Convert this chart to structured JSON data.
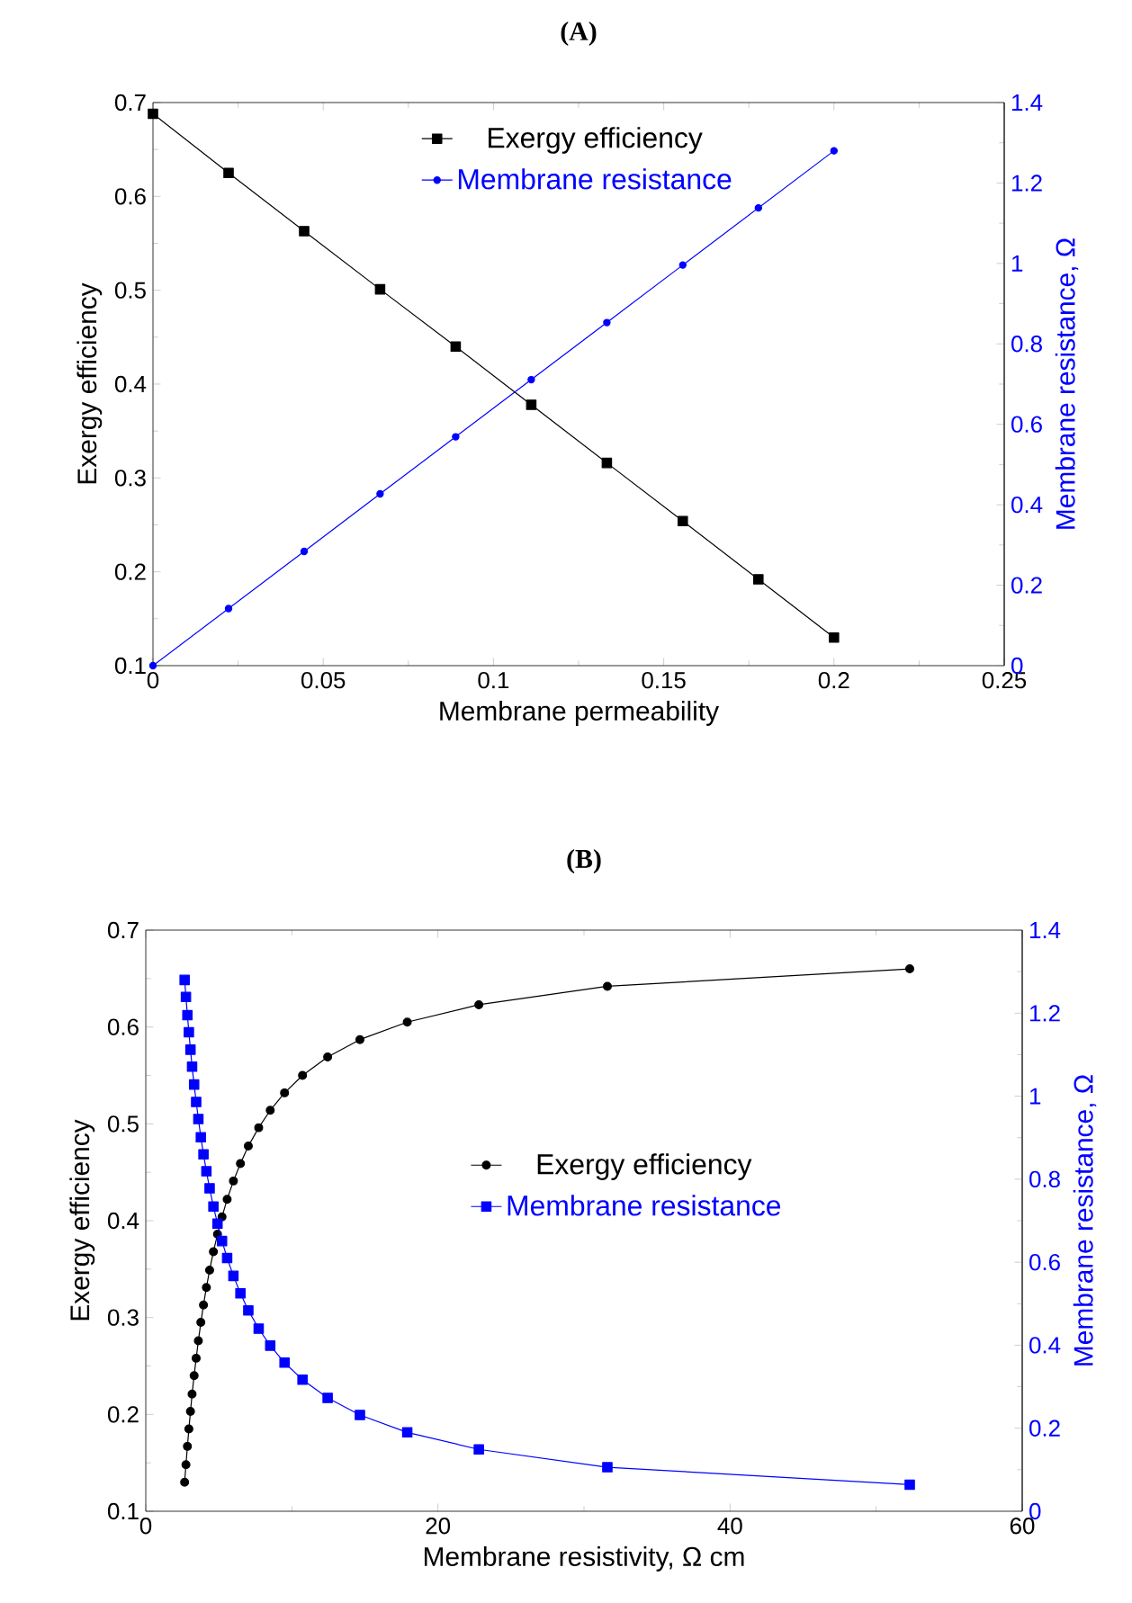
{
  "chart_data": [
    {
      "type": "line",
      "title": "(A)",
      "xlabel": "Membrane permeability",
      "ylabel": "Exergy efficiency",
      "y2label": "Membrane resistance, Ω",
      "xlim": [
        0,
        0.25
      ],
      "xticks": [
        0,
        0.05,
        0.1,
        0.15,
        0.2,
        0.25
      ],
      "ylim": [
        0.1,
        0.7
      ],
      "yticks": [
        0.1,
        0.2,
        0.3,
        0.4,
        0.5,
        0.6,
        0.7
      ],
      "y2lim": [
        0,
        1.4
      ],
      "y2ticks": [
        0,
        0.2,
        0.4,
        0.6,
        0.8,
        1,
        1.2,
        1.4
      ],
      "legend": "top",
      "x": [
        0,
        0.0222,
        0.0444,
        0.0667,
        0.0889,
        0.1111,
        0.1333,
        0.1556,
        0.1778,
        0.2
      ],
      "series": [
        {
          "name": "Exergy efficiency",
          "color": "#000000",
          "marker": "square",
          "values": [
            0.688,
            0.625,
            0.563,
            0.501,
            0.44,
            0.378,
            0.316,
            0.254,
            0.192,
            0.13
          ]
        },
        {
          "name": "Membrane resistance",
          "color": "#0000ff",
          "marker": "circle",
          "axis": "y2",
          "values": [
            0,
            0.142,
            0.284,
            0.427,
            0.569,
            0.711,
            0.853,
            0.996,
            1.138,
            1.28
          ]
        }
      ]
    },
    {
      "type": "line",
      "title": "(B)",
      "xlabel": "Membrane resistivity, Ω cm",
      "ylabel": "Exergy efficiency",
      "y2label": "Membrane resistance, Ω",
      "xlim": [
        0,
        60
      ],
      "xticks": [
        0,
        20,
        40,
        60
      ],
      "ylim": [
        0.1,
        0.7
      ],
      "yticks": [
        0.1,
        0.2,
        0.3,
        0.4,
        0.5,
        0.6,
        0.7
      ],
      "y2lim": [
        0,
        1.4
      ],
      "y2ticks": [
        0,
        0.2,
        0.4,
        0.6,
        0.8,
        1,
        1.2,
        1.4
      ],
      "legend": "center",
      "x": [
        2.66,
        2.75,
        2.85,
        2.95,
        3.06,
        3.17,
        3.31,
        3.45,
        3.6,
        3.77,
        3.95,
        4.15,
        4.37,
        4.63,
        4.91,
        5.22,
        5.57,
        6.0,
        6.48,
        7.02,
        7.73,
        8.52,
        9.5,
        10.73,
        12.45,
        14.66,
        17.9,
        22.8,
        31.6,
        52.3
      ],
      "series": [
        {
          "name": "Exergy efficiency",
          "color": "#000000",
          "marker": "circle",
          "values": [
            0.13,
            0.148,
            0.167,
            0.185,
            0.203,
            0.221,
            0.24,
            0.258,
            0.276,
            0.295,
            0.313,
            0.331,
            0.349,
            0.368,
            0.386,
            0.404,
            0.422,
            0.441,
            0.459,
            0.477,
            0.496,
            0.514,
            0.532,
            0.55,
            0.569,
            0.587,
            0.605,
            0.623,
            0.642,
            0.66
          ]
        },
        {
          "name": "Membrane resistance",
          "color": "#0000ff",
          "marker": "square",
          "axis": "y2",
          "values": [
            1.28,
            1.239,
            1.195,
            1.154,
            1.112,
            1.071,
            1.028,
            0.986,
            0.945,
            0.901,
            0.86,
            0.819,
            0.778,
            0.734,
            0.693,
            0.651,
            0.61,
            0.567,
            0.525,
            0.484,
            0.44,
            0.399,
            0.358,
            0.317,
            0.273,
            0.232,
            0.19,
            0.149,
            0.106,
            0.064
          ]
        }
      ]
    }
  ]
}
